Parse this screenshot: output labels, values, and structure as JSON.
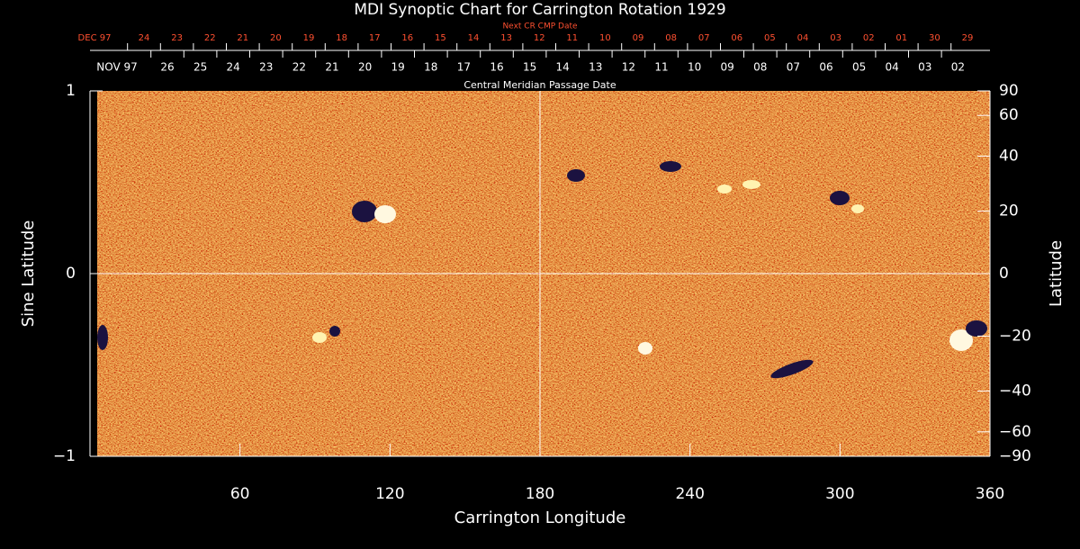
{
  "chart_data": {
    "type": "image",
    "title": "MDI Synoptic Chart for Carrington Rotation 1929",
    "top_axis_label": "Central Meridian Passage Date",
    "top_red_axis_label": "Next CR CMP Date",
    "cmp_dates": [
      "NOV 97",
      "26",
      "25",
      "24",
      "23",
      "22",
      "21",
      "20",
      "19",
      "18",
      "17",
      "16",
      "15",
      "14",
      "13",
      "12",
      "11",
      "10",
      "09",
      "08",
      "07",
      "06",
      "05",
      "04",
      "03",
      "02"
    ],
    "next_cr_dates": [
      "DEC 97",
      "24",
      "23",
      "22",
      "21",
      "20",
      "19",
      "18",
      "17",
      "16",
      "15",
      "14",
      "13",
      "12",
      "11",
      "10",
      "09",
      "08",
      "07",
      "06",
      "05",
      "04",
      "03",
      "02",
      "01",
      "30",
      "29"
    ],
    "xlabel": "Carrington Longitude",
    "ylabel": "Sine Latitude",
    "y2label": "Latitude",
    "xlim": [
      0,
      360
    ],
    "xticks": [
      60,
      120,
      180,
      240,
      300,
      360
    ],
    "ylim": [
      -1,
      1
    ],
    "yticks": [
      {
        "value": -1,
        "label": "−1"
      },
      0,
      1
    ],
    "y2scale": "sine",
    "y2lim": [
      -90,
      90
    ],
    "y2ticks": [
      90,
      60,
      40,
      20,
      0,
      {
        "value": -20,
        "label": "−20"
      },
      {
        "value": -40,
        "label": "−40"
      },
      {
        "value": -60,
        "label": "−60"
      },
      {
        "value": -90,
        "label": "−90"
      }
    ],
    "reference_lines": {
      "x": [
        180
      ],
      "y": [
        0
      ]
    }
  }
}
